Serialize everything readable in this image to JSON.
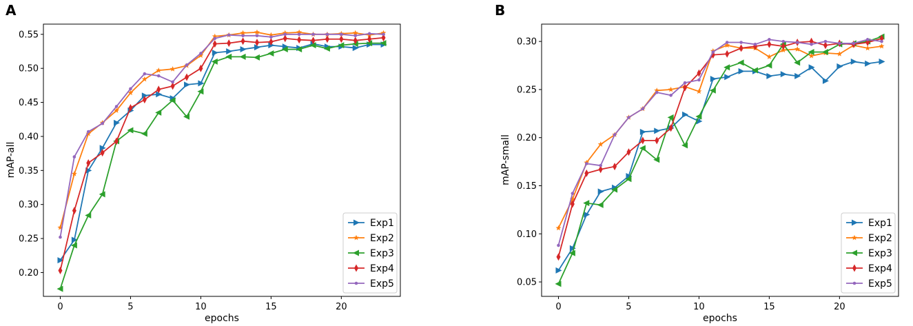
{
  "colors": {
    "Exp1": "#1f77b4",
    "Exp2": "#ff7f0e",
    "Exp3": "#2ca02c",
    "Exp4": "#d62728",
    "Exp5": "#9467bd"
  },
  "markers": {
    "Exp1": "triangle-right",
    "Exp2": "star",
    "Exp3": "triangle-left",
    "Exp4": "thin-diamond",
    "Exp5": "point"
  },
  "chart_data": [
    {
      "panel_label": "A",
      "type": "line",
      "xlabel": "epochs",
      "ylabel": "mAP-all",
      "xlim": [
        -1.2,
        24.2
      ],
      "ylim": [
        0.165,
        0.565
      ],
      "xticks": [
        0,
        5,
        10,
        15,
        20
      ],
      "yticks": [
        0.2,
        0.25,
        0.3,
        0.35,
        0.4,
        0.45,
        0.5,
        0.55
      ],
      "ytick_labels": [
        "0.20",
        "0.25",
        "0.30",
        "0.35",
        "0.40",
        "0.45",
        "0.50",
        "0.55"
      ],
      "legend_position": "lower-right",
      "x": [
        0,
        1,
        2,
        3,
        4,
        5,
        6,
        7,
        8,
        9,
        10,
        11,
        12,
        13,
        14,
        15,
        16,
        17,
        18,
        19,
        20,
        21,
        22,
        23
      ],
      "series": [
        {
          "name": "Exp1",
          "values": [
            0.218,
            0.248,
            0.35,
            0.383,
            0.42,
            0.438,
            0.46,
            0.462,
            0.456,
            0.476,
            0.478,
            0.523,
            0.525,
            0.528,
            0.531,
            0.534,
            0.532,
            0.53,
            0.536,
            0.532,
            0.532,
            0.53,
            0.535,
            0.535
          ]
        },
        {
          "name": "Exp2",
          "values": [
            0.266,
            0.345,
            0.404,
            0.42,
            0.438,
            0.464,
            0.484,
            0.497,
            0.499,
            0.504,
            0.519,
            0.547,
            0.549,
            0.552,
            0.553,
            0.549,
            0.552,
            0.553,
            0.55,
            0.55,
            0.551,
            0.552,
            0.549,
            0.552
          ]
        },
        {
          "name": "Exp3",
          "values": [
            0.176,
            0.24,
            0.284,
            0.315,
            0.393,
            0.409,
            0.404,
            0.435,
            0.453,
            0.429,
            0.466,
            0.51,
            0.517,
            0.517,
            0.516,
            0.522,
            0.528,
            0.528,
            0.534,
            0.529,
            0.534,
            0.536,
            0.537,
            0.537
          ]
        },
        {
          "name": "Exp4",
          "values": [
            0.203,
            0.291,
            0.361,
            0.376,
            0.393,
            0.442,
            0.454,
            0.469,
            0.474,
            0.487,
            0.5,
            0.536,
            0.537,
            0.54,
            0.538,
            0.539,
            0.544,
            0.542,
            0.541,
            0.543,
            0.543,
            0.541,
            0.543,
            0.545
          ]
        },
        {
          "name": "Exp5",
          "values": [
            0.252,
            0.37,
            0.407,
            0.419,
            0.444,
            0.47,
            0.492,
            0.489,
            0.48,
            0.505,
            0.522,
            0.544,
            0.549,
            0.548,
            0.548,
            0.546,
            0.55,
            0.55,
            0.55,
            0.55,
            0.55,
            0.548,
            0.551,
            0.55
          ]
        }
      ]
    },
    {
      "panel_label": "B",
      "type": "line",
      "xlabel": "epochs",
      "ylabel": "mAP-small",
      "xlim": [
        -1.2,
        24.2
      ],
      "ylim": [
        0.035,
        0.318
      ],
      "xticks": [
        0,
        5,
        10,
        15,
        20
      ],
      "yticks": [
        0.05,
        0.1,
        0.15,
        0.2,
        0.25,
        0.3
      ],
      "ytick_labels": [
        "0.05",
        "0.10",
        "0.15",
        "0.20",
        "0.25",
        "0.30"
      ],
      "legend_position": "lower-right",
      "x": [
        0,
        1,
        2,
        3,
        4,
        5,
        6,
        7,
        8,
        9,
        10,
        11,
        12,
        13,
        14,
        15,
        16,
        17,
        18,
        19,
        20,
        21,
        22,
        23
      ],
      "series": [
        {
          "name": "Exp1",
          "values": [
            0.062,
            0.085,
            0.12,
            0.144,
            0.148,
            0.16,
            0.206,
            0.207,
            0.21,
            0.224,
            0.217,
            0.261,
            0.263,
            0.269,
            0.269,
            0.264,
            0.266,
            0.264,
            0.273,
            0.259,
            0.274,
            0.279,
            0.277,
            0.279
          ]
        },
        {
          "name": "Exp2",
          "values": [
            0.106,
            0.136,
            0.174,
            0.193,
            0.203,
            0.221,
            0.23,
            0.249,
            0.25,
            0.253,
            0.248,
            0.29,
            0.296,
            0.293,
            0.293,
            0.284,
            0.291,
            0.292,
            0.285,
            0.288,
            0.287,
            0.296,
            0.293,
            0.295
          ]
        },
        {
          "name": "Exp3",
          "values": [
            0.048,
            0.08,
            0.132,
            0.13,
            0.146,
            0.157,
            0.189,
            0.177,
            0.221,
            0.192,
            0.222,
            0.249,
            0.273,
            0.278,
            0.27,
            0.275,
            0.297,
            0.278,
            0.289,
            0.289,
            0.297,
            0.298,
            0.3,
            0.305
          ]
        },
        {
          "name": "Exp4",
          "values": [
            0.076,
            0.131,
            0.163,
            0.167,
            0.17,
            0.185,
            0.197,
            0.197,
            0.21,
            0.252,
            0.267,
            0.286,
            0.287,
            0.293,
            0.295,
            0.297,
            0.295,
            0.299,
            0.3,
            0.296,
            0.298,
            0.297,
            0.299,
            0.303
          ]
        },
        {
          "name": "Exp5",
          "values": [
            0.088,
            0.142,
            0.173,
            0.171,
            0.203,
            0.221,
            0.23,
            0.247,
            0.244,
            0.257,
            0.26,
            0.289,
            0.299,
            0.299,
            0.297,
            0.302,
            0.3,
            0.299,
            0.297,
            0.3,
            0.298,
            0.298,
            0.302,
            0.3
          ]
        }
      ]
    }
  ]
}
